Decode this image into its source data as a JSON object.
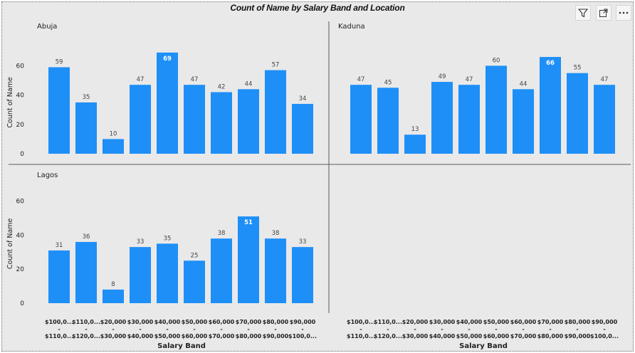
{
  "visual": {
    "title": "Count of Name by Salary Band and Location",
    "header_icons": [
      "filter-icon",
      "focus-mode-icon",
      "more-options-icon"
    ]
  },
  "colors": {
    "bar": "#1e8ff7",
    "divider": "#5a5a5a",
    "label_inside": "#ffffff"
  },
  "chart_data": {
    "type": "bar",
    "layout": "small-multiples",
    "xlabel": "Salary Band",
    "ylabel": "Count of Name",
    "ylim": [
      0,
      70
    ],
    "yticks": [
      0,
      20,
      40,
      60
    ],
    "categories": [
      "$100,000 - $110,000",
      "$110,000 - $120,000",
      "$20,000 - $30,000",
      "$30,000 - $40,000",
      "$40,000 - $50,000",
      "$50,000 - $60,000",
      "$60,000 - $70,000",
      "$70,000 - $80,000",
      "$80,000 - $90,000",
      "$90,000 - $100,000"
    ],
    "category_labels": [
      [
        "$100,0...",
        "-",
        "$110,0..."
      ],
      [
        "$110,0...",
        "-",
        "$120,0..."
      ],
      [
        "$20,000",
        "-",
        "$30,000"
      ],
      [
        "$30,000",
        "-",
        "$40,000"
      ],
      [
        "$40,000",
        "-",
        "$50,000"
      ],
      [
        "$50,000",
        "-",
        "$60,000"
      ],
      [
        "$60,000",
        "-",
        "$70,000"
      ],
      [
        "$70,000",
        "-",
        "$80,000"
      ],
      [
        "$80,000",
        "-",
        "$90,000"
      ],
      [
        "$90,000",
        "-",
        "$100,0..."
      ]
    ],
    "series": [
      {
        "name": "Abuja",
        "values": [
          59,
          35,
          10,
          47,
          69,
          47,
          42,
          44,
          57,
          34
        ]
      },
      {
        "name": "Kaduna",
        "values": [
          47,
          45,
          13,
          49,
          47,
          60,
          44,
          66,
          55,
          47
        ]
      },
      {
        "name": "Lagos",
        "values": [
          31,
          36,
          8,
          33,
          35,
          25,
          38,
          51,
          38,
          33
        ]
      }
    ]
  }
}
